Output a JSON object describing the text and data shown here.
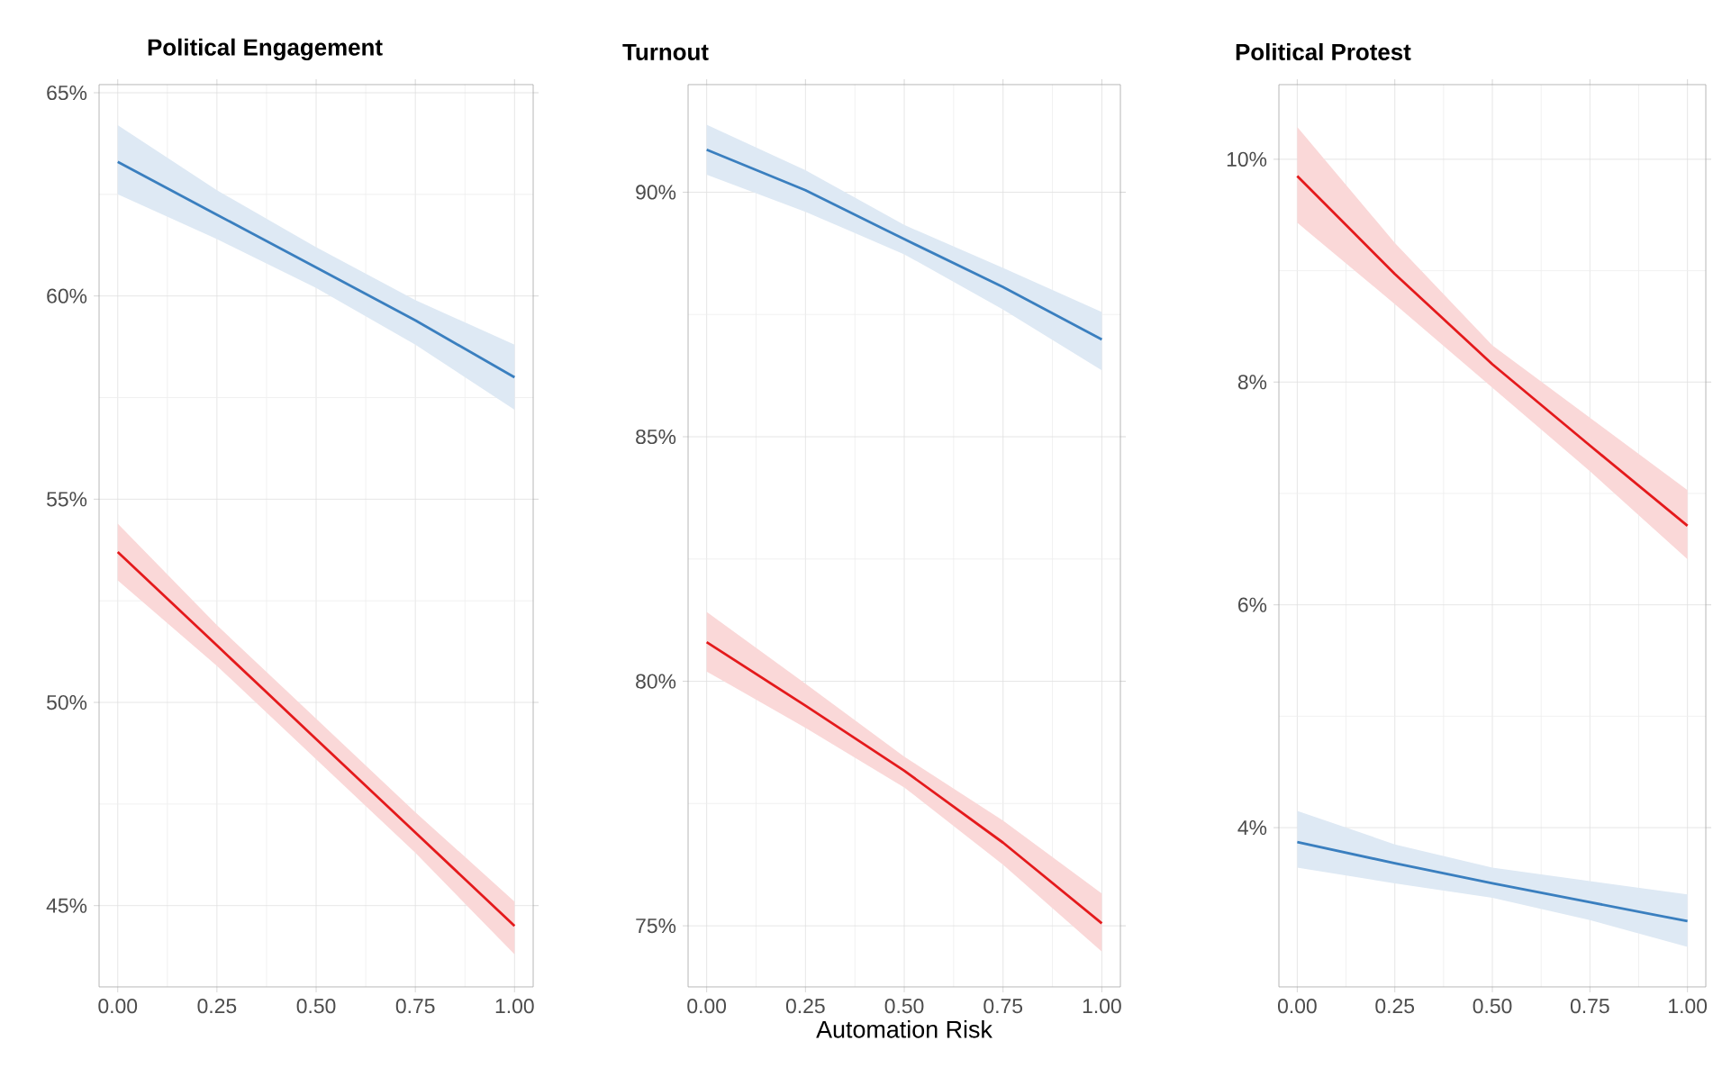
{
  "chart_data": [
    {
      "type": "line",
      "title": "Political Engagement",
      "x": [
        0,
        0.25,
        0.5,
        0.75,
        1
      ],
      "xlim": [
        -0.047,
        1.047
      ],
      "ylim": [
        43.0,
        65.2
      ],
      "grid": true,
      "xticks": [
        {
          "value": 0,
          "label": "0.00"
        },
        {
          "value": 0.25,
          "label": "0.25"
        },
        {
          "value": 0.5,
          "label": "0.50"
        },
        {
          "value": 0.75,
          "label": "0.75"
        },
        {
          "value": 1,
          "label": "1.00"
        }
      ],
      "yticks": [
        {
          "value": 45,
          "label": "45%"
        },
        {
          "value": 50,
          "label": "50%"
        },
        {
          "value": 55,
          "label": "55%"
        },
        {
          "value": 60,
          "label": "60%"
        },
        {
          "value": 65,
          "label": "65%"
        }
      ],
      "series": [
        {
          "color": "#3a7fbf",
          "values": [
            63.3,
            62.0,
            60.7,
            59.4,
            58.0
          ],
          "lower": [
            62.5,
            61.4,
            60.2,
            58.8,
            57.2
          ],
          "upper": [
            64.2,
            62.6,
            61.2,
            59.9,
            58.8
          ]
        },
        {
          "color": "#e41a1c",
          "values": [
            53.7,
            51.4,
            49.1,
            46.8,
            44.5
          ],
          "lower": [
            53.0,
            50.9,
            48.6,
            46.3,
            43.8
          ],
          "upper": [
            54.4,
            51.9,
            49.6,
            47.3,
            45.1
          ]
        }
      ]
    },
    {
      "type": "line",
      "title": "Turnout",
      "xlabel": "Automation Risk",
      "x": [
        0,
        0.25,
        0.5,
        0.75,
        1
      ],
      "xlim": [
        -0.047,
        1.047
      ],
      "ylim": [
        73.75,
        92.2
      ],
      "grid": true,
      "xticks": [
        {
          "value": 0,
          "label": "0.00"
        },
        {
          "value": 0.25,
          "label": "0.25"
        },
        {
          "value": 0.5,
          "label": "0.50"
        },
        {
          "value": 0.75,
          "label": "0.75"
        },
        {
          "value": 1,
          "label": "1.00"
        }
      ],
      "yticks": [
        {
          "value": 75,
          "label": "75%"
        },
        {
          "value": 80,
          "label": "80%"
        },
        {
          "value": 85,
          "label": "85%"
        },
        {
          "value": 90,
          "label": "90%"
        }
      ],
      "series": [
        {
          "color": "#3a7fbf",
          "values": [
            90.87,
            90.04,
            89.04,
            88.06,
            86.99
          ],
          "lower": [
            90.36,
            89.6,
            88.73,
            87.6,
            86.36
          ],
          "upper": [
            91.38,
            90.45,
            89.33,
            88.45,
            87.55
          ]
        },
        {
          "color": "#e41a1c",
          "values": [
            80.8,
            79.5,
            78.17,
            76.7,
            75.05
          ],
          "lower": [
            80.2,
            79.05,
            77.83,
            76.25,
            74.47
          ],
          "upper": [
            81.42,
            79.95,
            78.46,
            77.15,
            75.66
          ]
        }
      ]
    },
    {
      "type": "line",
      "title": "Political Protest",
      "x": [
        0,
        0.25,
        0.5,
        0.75,
        1
      ],
      "xlim": [
        -0.047,
        1.047
      ],
      "ylim": [
        2.57,
        10.67
      ],
      "grid": true,
      "xticks": [
        {
          "value": 0,
          "label": "0.00"
        },
        {
          "value": 0.25,
          "label": "0.25"
        },
        {
          "value": 0.5,
          "label": "0.50"
        },
        {
          "value": 0.75,
          "label": "0.75"
        },
        {
          "value": 1,
          "label": "1.00"
        }
      ],
      "yticks": [
        {
          "value": 4,
          "label": "4%"
        },
        {
          "value": 6,
          "label": "6%"
        },
        {
          "value": 8,
          "label": "8%"
        },
        {
          "value": 10,
          "label": "10%"
        }
      ],
      "series": [
        {
          "color": "#e41a1c",
          "values": [
            9.85,
            8.97,
            8.16,
            7.43,
            6.71
          ],
          "lower": [
            9.43,
            8.7,
            7.95,
            7.2,
            6.41
          ],
          "upper": [
            10.29,
            9.25,
            8.33,
            7.68,
            7.03
          ]
        },
        {
          "color": "#3a7fbf",
          "values": [
            3.87,
            3.68,
            3.5,
            3.33,
            3.16
          ],
          "lower": [
            3.64,
            3.5,
            3.37,
            3.17,
            2.93
          ],
          "upper": [
            4.15,
            3.85,
            3.64,
            3.52,
            3.4
          ]
        }
      ]
    }
  ]
}
